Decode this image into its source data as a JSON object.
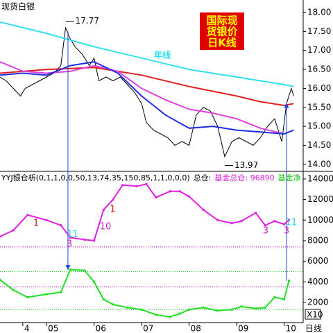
{
  "chart_data": [
    {
      "type": "line",
      "title": "现货白银",
      "box_title": [
        "国际现",
        "货银价",
        "日K线"
      ],
      "xlim": [
        4.02,
        10.4
      ],
      "ylim": [
        13.85,
        18.33
      ],
      "yticks": [
        {
          "value": 14,
          "label": "14.00"
        },
        {
          "value": 14.5,
          "label": "14.50"
        },
        {
          "value": 15,
          "label": "15.00"
        },
        {
          "value": 15.5,
          "label": "15.50"
        },
        {
          "value": 16,
          "label": "16.00"
        },
        {
          "value": 16.5,
          "label": "16.50"
        },
        {
          "value": 17,
          "label": "17.00"
        },
        {
          "value": 17.5,
          "label": "17.50"
        },
        {
          "value": 18,
          "label": "18.00"
        }
      ],
      "series": [
        {
          "color": "#000000",
          "x": [
            4.02,
            4.15,
            4.3,
            4.45,
            4.55,
            4.7,
            4.85,
            5.0,
            5.15,
            5.3,
            5.4,
            5.5,
            5.6,
            5.75,
            5.9,
            6.0,
            6.1,
            6.25,
            6.4,
            6.55,
            6.7,
            6.85,
            7.0,
            7.1,
            7.25,
            7.4,
            7.55,
            7.7,
            7.85,
            8.0,
            8.15,
            8.3,
            8.45,
            8.6,
            8.75,
            8.9,
            9.05,
            9.2,
            9.35,
            9.5,
            9.65,
            9.8,
            9.95,
            10.05,
            10.15,
            10.2
          ],
          "values": [
            16.3,
            16.2,
            16.0,
            15.8,
            16.0,
            16.1,
            16.2,
            16.3,
            16.4,
            16.6,
            17.6,
            17.3,
            17.1,
            16.9,
            16.6,
            16.8,
            16.2,
            16.3,
            16.2,
            16.3,
            16.1,
            15.9,
            15.6,
            15.1,
            14.9,
            14.8,
            14.7,
            14.5,
            14.6,
            14.5,
            15.3,
            15.5,
            15.4,
            15.0,
            14.2,
            14.6,
            14.7,
            14.6,
            14.5,
            14.7,
            15.0,
            15.2,
            14.6,
            15.6,
            16.0,
            15.8
          ]
        },
        {
          "name": "年线",
          "color": "#33e0f0",
          "x": [
            4.02,
            5.0,
            6.0,
            7.0,
            8.0,
            9.0,
            10.0,
            10.2
          ],
          "values": [
            17.75,
            17.45,
            17.1,
            16.8,
            16.5,
            16.3,
            16.1,
            16.05
          ]
        },
        {
          "color": "#e02020",
          "x": [
            4.02,
            5.0,
            6.0,
            7.0,
            8.0,
            9.0,
            9.5,
            10.0,
            10.2
          ],
          "values": [
            16.4,
            16.5,
            16.55,
            16.35,
            16.05,
            15.8,
            15.65,
            15.55,
            15.6
          ]
        },
        {
          "color": "#e040e0",
          "x": [
            4.02,
            4.5,
            5.0,
            5.5,
            6.0,
            6.5,
            7.0,
            7.5,
            8.0,
            8.5,
            9.0,
            9.5,
            10.0,
            10.2
          ],
          "values": [
            16.7,
            16.45,
            16.4,
            16.45,
            16.6,
            16.45,
            16.0,
            15.7,
            15.45,
            15.35,
            15.2,
            14.95,
            14.8,
            14.9
          ]
        },
        {
          "color": "#2030e0",
          "x": [
            4.02,
            4.5,
            5.0,
            5.5,
            6.0,
            6.5,
            7.0,
            7.5,
            8.0,
            8.5,
            9.0,
            9.5,
            10.0,
            10.2
          ],
          "values": [
            16.35,
            16.4,
            16.35,
            16.6,
            16.7,
            16.4,
            15.8,
            15.3,
            14.95,
            15.0,
            14.9,
            14.85,
            14.8,
            14.9
          ]
        }
      ],
      "high": {
        "x": 5.4,
        "value": 17.77
      },
      "low": {
        "x": 8.75,
        "value": 13.97
      },
      "signals": [
        {
          "x": 5.45,
          "price": 17.5,
          "fund": 5200,
          "direction": "down"
        },
        {
          "x": 10.05,
          "price": 15.6,
          "fund": 4100,
          "direction": "up"
        }
      ]
    },
    {
      "type": "line",
      "header": [
        {
          "text": "YYJ银仓析(0,1,1,0,0,50,13,74,35,150,85,1,1,0,0,0)",
          "color": "#000000"
        },
        {
          "text": "总仓:",
          "color": "#000000"
        },
        {
          "text": "基金总仓: 96890",
          "color": "#e020e0"
        },
        {
          "text": "基金净",
          "color": "#10c010"
        }
      ],
      "xlim": [
        4.02,
        10.4
      ],
      "ylim": [
        40,
        14670
      ],
      "yticks": [
        2000,
        4000,
        6000,
        8000,
        10000,
        12000,
        14000
      ],
      "xticks": [
        {
          "value": 4.5,
          "label": "4"
        },
        {
          "value": 5,
          "label": "05"
        },
        {
          "value": 6,
          "label": "06"
        },
        {
          "value": 7,
          "label": "07"
        },
        {
          "value": 8,
          "label": "08"
        },
        {
          "value": 9,
          "label": "09"
        },
        {
          "value": 10,
          "label": "10"
        }
      ],
      "x_label": "日线",
      "scale_label": "X10",
      "series": [
        {
          "color": "#e020e0",
          "x": [
            4.02,
            4.3,
            4.6,
            5.0,
            5.3,
            5.5,
            5.8,
            6.0,
            6.2,
            6.4,
            6.6,
            6.9,
            7.1,
            7.3,
            7.6,
            7.8,
            8.0,
            8.3,
            8.6,
            8.9,
            9.1,
            9.4,
            9.6,
            9.8,
            10.0,
            10.1
          ],
          "values": [
            8400,
            9000,
            10500,
            10000,
            9500,
            8300,
            8100,
            8000,
            11000,
            12000,
            13400,
            13300,
            13500,
            12200,
            12800,
            12800,
            12300,
            11000,
            10000,
            9700,
            9900,
            10700,
            9500,
            9900,
            9600,
            10000
          ]
        },
        {
          "color": "#20e020",
          "x": [
            4.02,
            4.3,
            4.6,
            5.0,
            5.3,
            5.5,
            5.8,
            6.0,
            6.2,
            6.4,
            6.7,
            7.0,
            7.3,
            7.6,
            7.8,
            8.0,
            8.3,
            8.6,
            8.9,
            9.1,
            9.4,
            9.6,
            9.8,
            10.0,
            10.1
          ],
          "values": [
            4200,
            3200,
            2500,
            2800,
            3000,
            5200,
            5100,
            4000,
            2300,
            1800,
            1500,
            1300,
            800,
            600,
            900,
            1300,
            1500,
            1200,
            1300,
            1600,
            1400,
            1500,
            2500,
            2300,
            4100
          ]
        }
      ],
      "reference_lines": [
        {
          "value": 7400,
          "color": "#c000c0"
        },
        {
          "value": 5000,
          "color": "#10c010"
        },
        {
          "value": 3500,
          "color": "#c000c0"
        },
        {
          "value": 1300,
          "color": "#10c010"
        }
      ],
      "annotations": [
        {
          "text": "1",
          "x": 4.78,
          "y": 9685,
          "color": "#d01010"
        },
        {
          "text": "3",
          "x": 5.48,
          "y": 7660,
          "color": "#c020c0"
        },
        {
          "text": "11",
          "x": 5.55,
          "y": 8600,
          "color": "#20d0e0"
        },
        {
          "text": "10",
          "x": 6.24,
          "y": 9350,
          "color": "#c020c0"
        },
        {
          "text": "1",
          "x": 6.39,
          "y": 11030,
          "color": "#d01010"
        },
        {
          "text": "3",
          "x": 9.61,
          "y": 8940,
          "color": "#c020c0"
        },
        {
          "text": "3",
          "x": 10.05,
          "y": 8940,
          "color": "#c020c0"
        },
        {
          "text": "11",
          "x": 10.15,
          "y": 9750,
          "color": "#20d0e0"
        }
      ]
    }
  ]
}
